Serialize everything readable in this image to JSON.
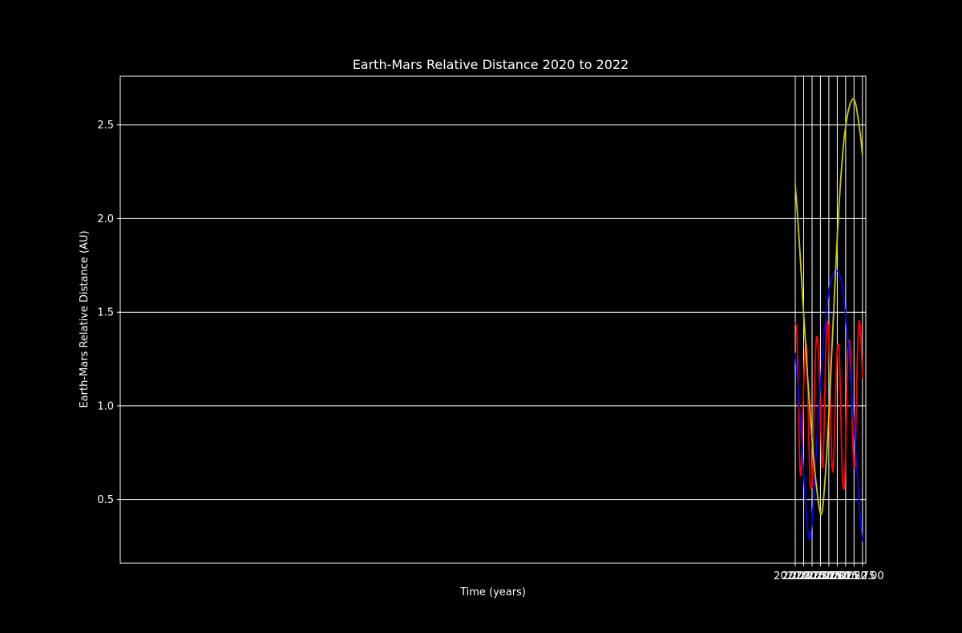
{
  "chart_data": {
    "type": "line",
    "title": "Earth-Mars Relative Distance 2020 to 2022",
    "xlabel": "Time (years)",
    "ylabel": "Earth-Mars Relative Distance (AU)",
    "xlim": [
      1999.9,
      2022.1
    ],
    "ylim": [
      0.16,
      2.76
    ],
    "x_ticks": [
      {
        "value": 2020.0,
        "label": "2020.00"
      },
      {
        "value": 2020.25,
        "label": "2020.25"
      },
      {
        "value": 2020.5,
        "label": "2020.50"
      },
      {
        "value": 2020.75,
        "label": "2020.75"
      },
      {
        "value": 2021.0,
        "label": "2021.00"
      },
      {
        "value": 2021.25,
        "label": "2021.25"
      },
      {
        "value": 2021.5,
        "label": "2021.50"
      },
      {
        "value": 2021.75,
        "label": "2021.75"
      },
      {
        "value": 2022.0,
        "label": "2022.00"
      }
    ],
    "y_ticks": [
      {
        "value": 0.5,
        "label": "0.5"
      },
      {
        "value": 1.0,
        "label": "1.0"
      },
      {
        "value": 1.5,
        "label": "1.5"
      },
      {
        "value": 2.0,
        "label": "2.0"
      },
      {
        "value": 2.5,
        "label": "2.5"
      }
    ],
    "grid": true,
    "background": "#000000",
    "foreground": "#ffffff",
    "series": [
      {
        "color": "#ff0000",
        "x": [
          2020.0,
          2020.025,
          2020.05,
          2020.075,
          2020.1,
          2020.125,
          2020.15,
          2020.165,
          2020.18,
          2020.2,
          2020.225,
          2020.25,
          2020.275,
          2020.3,
          2020.32,
          2020.335,
          2020.35,
          2020.375,
          2020.4,
          2020.425,
          2020.45,
          2020.475,
          2020.5,
          2020.525,
          2020.55,
          2020.575,
          2020.6,
          2020.625,
          2020.645,
          2020.665,
          2020.69,
          2020.715,
          2020.74,
          2020.765,
          2020.79,
          2020.81,
          2020.83,
          2020.855,
          2020.88,
          2020.905,
          2020.93,
          2020.955,
          2020.97,
          2020.985,
          2021.01,
          2021.035,
          2021.06,
          2021.085,
          2021.11,
          2021.13,
          2021.155,
          2021.18,
          2021.205,
          2021.23,
          2021.255,
          2021.285,
          2021.31,
          2021.335,
          2021.36,
          2021.385,
          2021.41,
          2021.435,
          2021.455,
          2021.475,
          2021.5,
          2021.525,
          2021.55,
          2021.575,
          2021.595,
          2021.615,
          2021.64,
          2021.665,
          2021.69,
          2021.715,
          2021.74,
          2021.765,
          2021.78,
          2021.8,
          2021.825,
          2021.85,
          2021.875,
          2021.9,
          2021.915,
          2021.93,
          2021.955,
          2021.975,
          2022.0
        ],
        "y": [
          1.44,
          1.43,
          1.36,
          1.2,
          0.96,
          0.74,
          0.64,
          0.63,
          0.66,
          0.76,
          0.93,
          1.1,
          1.23,
          1.31,
          1.33,
          1.32,
          1.26,
          1.08,
          0.85,
          0.67,
          0.57,
          0.56,
          0.58,
          0.7,
          0.9,
          1.11,
          1.27,
          1.35,
          1.37,
          1.35,
          1.29,
          1.18,
          1.02,
          0.85,
          0.71,
          0.67,
          0.7,
          0.85,
          1.07,
          1.28,
          1.4,
          1.45,
          1.44,
          1.42,
          1.32,
          1.13,
          0.9,
          0.72,
          0.65,
          0.67,
          0.78,
          0.95,
          1.1,
          1.23,
          1.31,
          1.33,
          1.28,
          1.14,
          0.93,
          0.72,
          0.6,
          0.56,
          0.56,
          0.61,
          0.77,
          1.0,
          1.21,
          1.32,
          1.35,
          1.34,
          1.27,
          1.13,
          0.97,
          0.8,
          0.69,
          0.67,
          0.7,
          0.85,
          1.07,
          1.27,
          1.39,
          1.45,
          1.45,
          1.43,
          1.36,
          1.27,
          1.15
        ]
      },
      {
        "color": "#0000ff",
        "x": [
          2020.0,
          2020.05,
          2020.1,
          2020.15,
          2020.2,
          2020.25,
          2020.3,
          2020.35,
          2020.38,
          2020.41,
          2020.43,
          2020.45,
          2020.475,
          2020.5,
          2020.55,
          2020.6,
          2020.65,
          2020.7,
          2020.75,
          2020.8,
          2020.85,
          2020.9,
          2020.95,
          2021.0,
          2021.05,
          2021.1,
          2021.15,
          2021.2,
          2021.25,
          2021.3,
          2021.35,
          2021.4,
          2021.45,
          2021.5,
          2021.55,
          2021.6,
          2021.65,
          2021.7,
          2021.75,
          2021.8,
          2021.85,
          2021.9,
          2021.95,
          2022.0
        ],
        "y": [
          1.28,
          1.17,
          1.05,
          0.92,
          0.78,
          0.64,
          0.5,
          0.37,
          0.32,
          0.29,
          0.29,
          0.31,
          0.34,
          0.39,
          0.52,
          0.68,
          0.84,
          0.99,
          1.12,
          1.25,
          1.37,
          1.46,
          1.54,
          1.61,
          1.66,
          1.69,
          1.71,
          1.72,
          1.72,
          1.71,
          1.68,
          1.63,
          1.56,
          1.48,
          1.38,
          1.27,
          1.14,
          1.01,
          0.88,
          0.75,
          0.62,
          0.48,
          0.36,
          0.28
        ]
      },
      {
        "color": "#cccc00",
        "x": [
          2020.0,
          2020.05,
          2020.1,
          2020.15,
          2020.2,
          2020.25,
          2020.3,
          2020.35,
          2020.4,
          2020.45,
          2020.5,
          2020.55,
          2020.6,
          2020.65,
          2020.7,
          2020.73,
          2020.76,
          2020.79,
          2020.82,
          2020.85,
          2020.9,
          2020.95,
          2021.0,
          2021.05,
          2021.1,
          2021.15,
          2021.2,
          2021.25,
          2021.3,
          2021.35,
          2021.4,
          2021.45,
          2021.5,
          2021.55,
          2021.6,
          2021.65,
          2021.7,
          2021.72,
          2021.75,
          2021.8,
          2021.85,
          2021.9,
          2021.95,
          2022.0
        ],
        "y": [
          2.18,
          2.06,
          1.93,
          1.79,
          1.64,
          1.49,
          1.35,
          1.2,
          1.07,
          0.94,
          0.82,
          0.71,
          0.62,
          0.54,
          0.47,
          0.44,
          0.42,
          0.43,
          0.46,
          0.52,
          0.64,
          0.78,
          0.95,
          1.14,
          1.34,
          1.53,
          1.72,
          1.9,
          2.06,
          2.2,
          2.32,
          2.42,
          2.49,
          2.55,
          2.59,
          2.62,
          2.635,
          2.64,
          2.635,
          2.61,
          2.56,
          2.5,
          2.43,
          2.34
        ]
      }
    ]
  }
}
